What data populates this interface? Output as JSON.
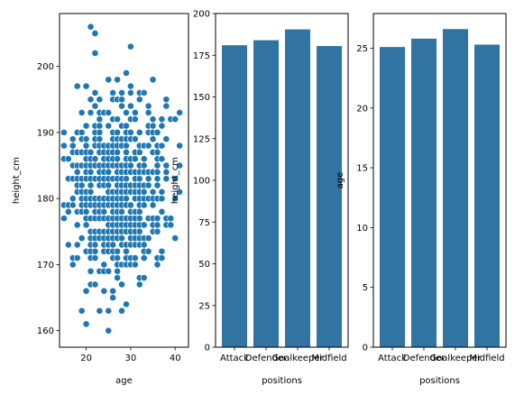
{
  "colors": {
    "marker": "#1f77b4",
    "bar": "#3274a1",
    "marker_edge": "#ffffff",
    "axis": "#000000"
  },
  "chart_data": [
    {
      "type": "scatter",
      "xlabel": "age",
      "ylabel": "height_cm",
      "xlim": [
        14,
        43
      ],
      "ylim": [
        157.5,
        208
      ],
      "xticks": [
        20,
        30,
        40
      ],
      "yticks": [
        160,
        170,
        180,
        190,
        200
      ],
      "grid": false,
      "points_summary": {
        "x_range": [
          15,
          41
        ],
        "y_range_typical": [
          163,
          199
        ],
        "outliers": [
          [
            21,
            206
          ],
          [
            22,
            205
          ],
          [
            22,
            202
          ],
          [
            30,
            203
          ],
          [
            25,
            160
          ],
          [
            20,
            161
          ],
          [
            41,
            193
          ]
        ]
      }
    },
    {
      "type": "bar",
      "xlabel": "positions",
      "ylabel": "height_cm",
      "categories": [
        "Attack",
        "Defender",
        "Goalkeeper",
        "Midfield"
      ],
      "values": [
        181,
        184,
        190.5,
        180.5
      ],
      "ylim": [
        0,
        200
      ],
      "yticks": [
        0,
        25,
        50,
        75,
        100,
        125,
        150,
        175,
        200
      ],
      "grid": false
    },
    {
      "type": "bar",
      "xlabel": "positions",
      "ylabel": "age",
      "categories": [
        "Attack",
        "Defender",
        "Goalkeeper",
        "Midfield"
      ],
      "values": [
        25.1,
        25.8,
        26.6,
        25.3
      ],
      "ylim": [
        0,
        27.9
      ],
      "yticks": [
        0,
        5,
        10,
        15,
        20,
        25
      ],
      "grid": false
    }
  ]
}
